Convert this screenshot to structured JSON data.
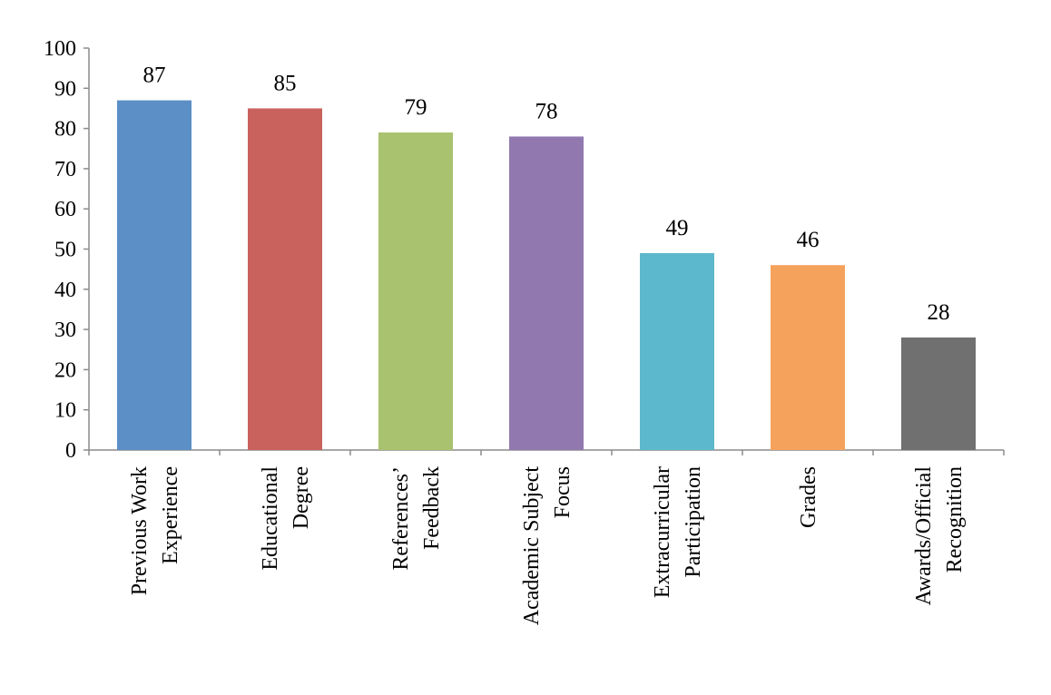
{
  "chart_data": {
    "type": "bar",
    "title": "",
    "xlabel": "",
    "ylabel": "",
    "ylim": [
      0,
      100
    ],
    "yticks": [
      0,
      10,
      20,
      30,
      40,
      50,
      60,
      70,
      80,
      90,
      100
    ],
    "grid": false,
    "legend": "none",
    "categories": [
      [
        "Previous Work",
        "Experience"
      ],
      [
        "Educational",
        "Degree"
      ],
      [
        "References’",
        "Feedback"
      ],
      [
        "Academic Subject",
        "Focus"
      ],
      [
        "Extracurricular",
        "Participation"
      ],
      [
        "Grades"
      ],
      [
        "Awards/Official",
        "Recognition"
      ]
    ],
    "values": [
      87,
      85,
      79,
      78,
      49,
      46,
      28
    ],
    "data_labels": [
      "87",
      "85",
      "79",
      "78",
      "49",
      "46",
      "28"
    ],
    "colors": [
      "#5b8fc5",
      "#c9625d",
      "#a8c26f",
      "#9179af",
      "#5cb8cc",
      "#f5a25d",
      "#707070"
    ]
  }
}
